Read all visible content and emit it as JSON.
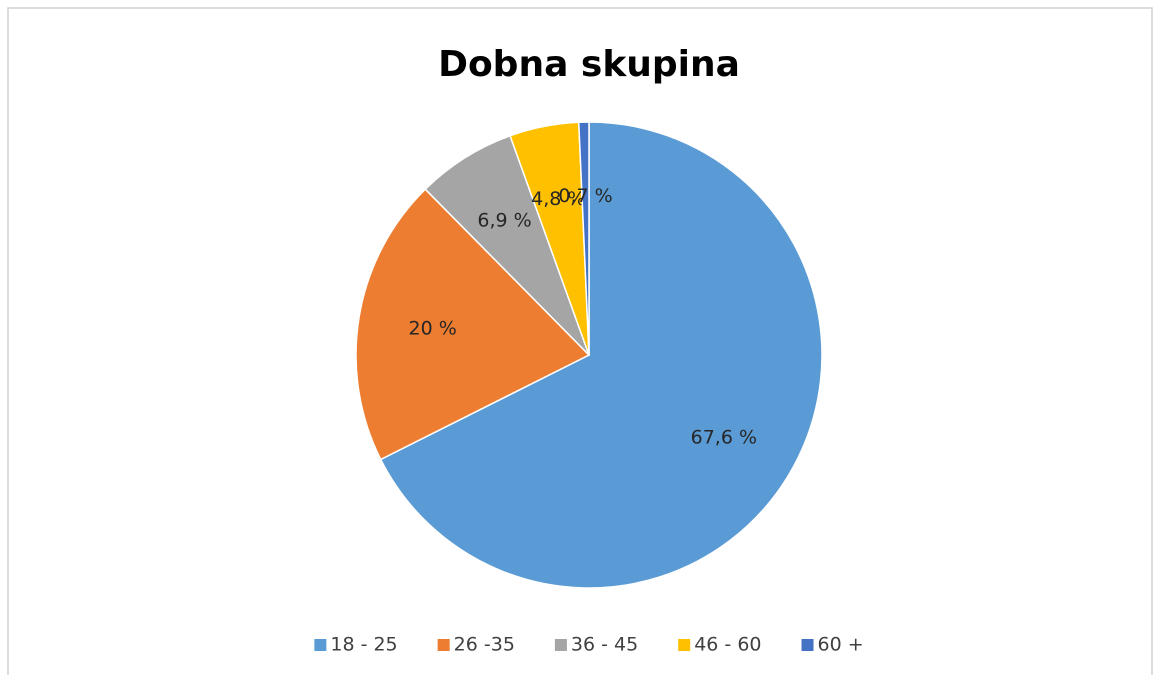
{
  "chart_data": {
    "type": "pie",
    "title": "Dobna skupina",
    "categories": [
      "18 - 25",
      "26 -35",
      "36 - 45",
      "46 - 60",
      "60 +"
    ],
    "values": [
      67.6,
      20,
      6.9,
      4.8,
      0.7
    ],
    "value_labels": [
      "67,6 %",
      "20 %",
      "6,9 %",
      "4,8 %",
      "0,7 %"
    ],
    "colors": [
      "#5b9bd5",
      "#ed7d31",
      "#a5a5a5",
      "#ffc000",
      "#4472c4"
    ],
    "legend": "bottom"
  }
}
